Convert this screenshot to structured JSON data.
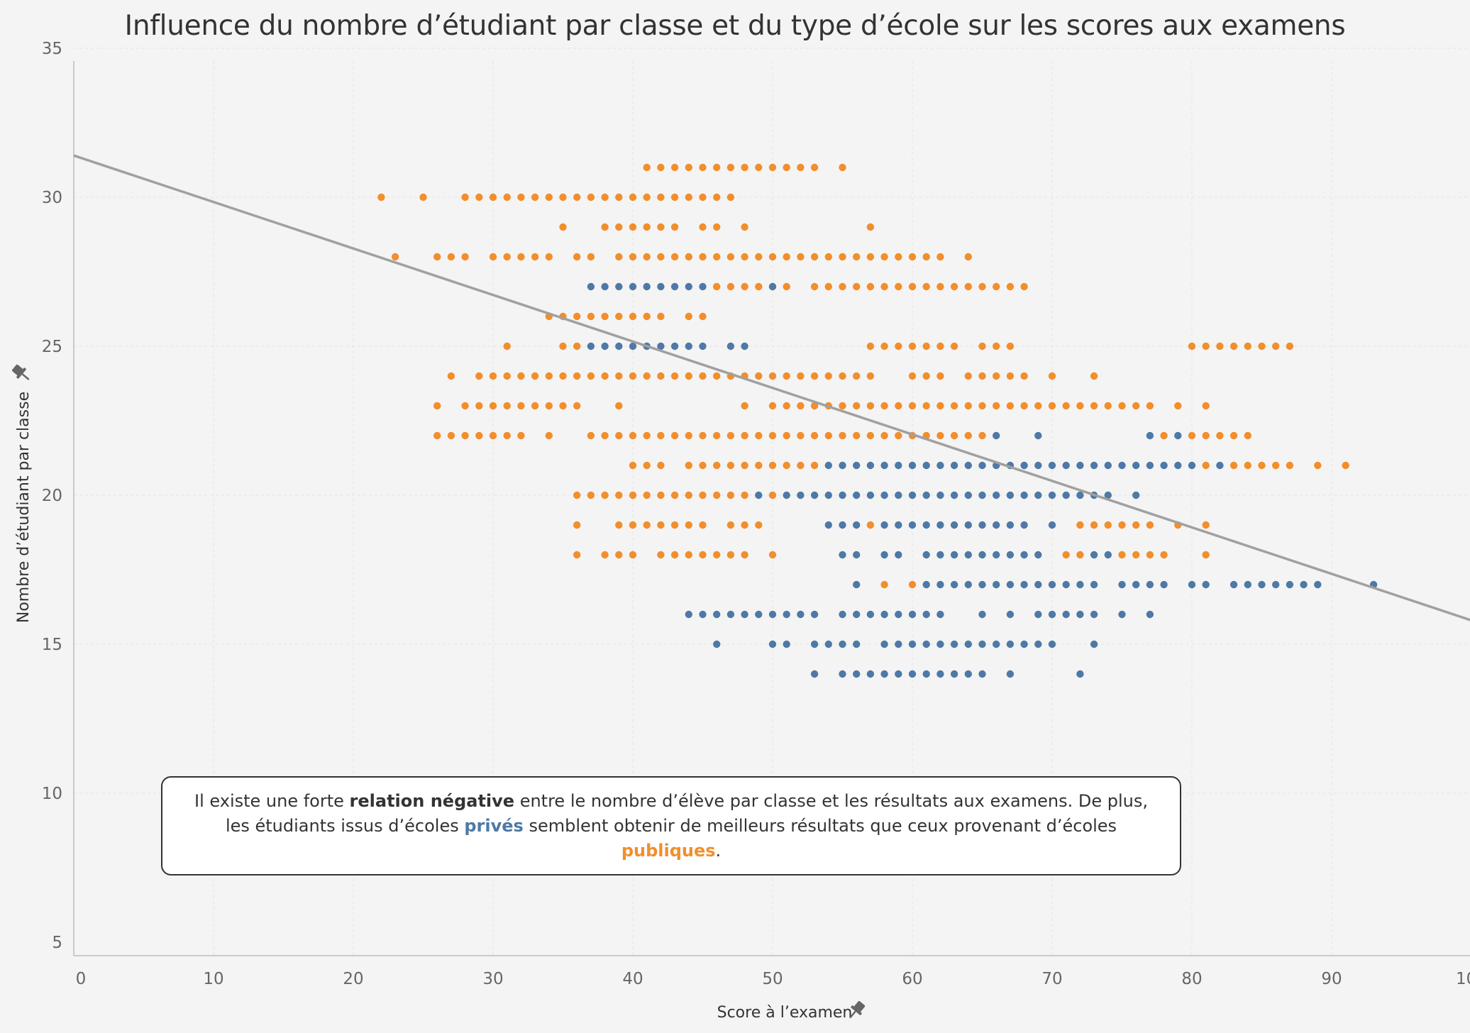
{
  "chart_data": {
    "type": "scatter",
    "title": "Influence du nombre d’étudiant par classe et du type d’école sur les scores aux examens",
    "xlabel": "Score à l’examen",
    "ylabel": "Nombre d’étudiant par classe",
    "xlim": [
      0,
      100
    ],
    "ylim": [
      5,
      35
    ],
    "x_ticks": [
      "0",
      "10",
      "20",
      "30",
      "40",
      "50",
      "60",
      "70",
      "80",
      "90",
      "100"
    ],
    "y_ticks": [
      "5",
      "10",
      "15",
      "20",
      "25",
      "30",
      "35"
    ],
    "grid": true,
    "legend": "none",
    "colors": {
      "prive": "#4e79a7",
      "publique": "#f28e2b",
      "trend": "#a0a0a0"
    },
    "trend_line": {
      "x": [
        0,
        100
      ],
      "y": [
        31.4,
        15.8
      ]
    },
    "series": [
      {
        "key": "publique",
        "color": "#f28e2b",
        "rows": [
          {
            "y": 31,
            "x": [
              41,
              42,
              43,
              44,
              45,
              46,
              47,
              48,
              49,
              50,
              51,
              52,
              53,
              55
            ]
          },
          {
            "y": 30,
            "x": [
              22,
              25,
              28,
              29,
              30,
              31,
              32,
              33,
              34,
              35,
              36,
              37,
              38,
              39,
              40,
              41,
              42,
              43,
              44,
              45,
              46,
              47
            ]
          },
          {
            "y": 29,
            "x": [
              35,
              38,
              39,
              40,
              41,
              42,
              43,
              45,
              46,
              48,
              57
            ]
          },
          {
            "y": 28,
            "x": [
              23,
              26,
              27,
              28,
              30,
              31,
              32,
              33,
              34,
              36,
              37,
              39,
              40,
              41,
              42,
              43,
              44,
              45,
              46,
              47,
              48,
              49,
              50,
              51,
              52,
              53,
              54,
              55,
              56,
              57,
              58,
              59,
              60,
              61,
              62,
              64
            ]
          },
          {
            "y": 27,
            "x": [
              46,
              47,
              48,
              49,
              50,
              51,
              53,
              54,
              55,
              56,
              57,
              58,
              59,
              60,
              61,
              62,
              63,
              64,
              65,
              66,
              67,
              68
            ]
          },
          {
            "y": 26,
            "x": [
              34,
              35,
              36,
              37,
              38,
              39,
              40,
              41,
              42,
              44,
              45
            ]
          },
          {
            "y": 25,
            "x": [
              31,
              35,
              36,
              57,
              58,
              59,
              60,
              61,
              62,
              63,
              65,
              66,
              67,
              80,
              81,
              82,
              83,
              84,
              85,
              86,
              87
            ]
          },
          {
            "y": 24,
            "x": [
              27,
              29,
              30,
              31,
              32,
              33,
              34,
              35,
              36,
              37,
              38,
              39,
              40,
              41,
              42,
              43,
              44,
              45,
              46,
              47,
              48,
              49,
              50,
              51,
              52,
              53,
              54,
              55,
              56,
              57,
              60,
              61,
              62,
              64,
              65,
              66,
              67,
              68,
              70,
              73
            ]
          },
          {
            "y": 23,
            "x": [
              26,
              28,
              29,
              30,
              31,
              32,
              33,
              34,
              35,
              36,
              39,
              48,
              50,
              51,
              52,
              53,
              54,
              55,
              56,
              57,
              58,
              59,
              60,
              61,
              62,
              63,
              64,
              65,
              66,
              67,
              68,
              69,
              70,
              71,
              72,
              73,
              74,
              75,
              76,
              77,
              79,
              81
            ]
          },
          {
            "y": 22,
            "x": [
              26,
              27,
              28,
              29,
              30,
              31,
              32,
              34,
              37,
              38,
              39,
              40,
              41,
              42,
              43,
              44,
              45,
              46,
              47,
              48,
              49,
              50,
              51,
              52,
              53,
              54,
              55,
              56,
              57,
              58,
              59,
              60,
              61,
              62,
              63,
              64,
              65,
              78,
              80,
              81,
              82,
              83,
              84
            ]
          },
          {
            "y": 21,
            "x": [
              40,
              41,
              42,
              44,
              45,
              46,
              47,
              48,
              49,
              50,
              51,
              52,
              53,
              81,
              83,
              84,
              85,
              86,
              87,
              89,
              91
            ]
          },
          {
            "y": 20,
            "x": [
              36,
              37,
              38,
              39,
              40,
              41,
              42,
              43,
              44,
              45,
              46,
              47,
              48,
              50
            ]
          },
          {
            "y": 19,
            "x": [
              36,
              39,
              40,
              41,
              42,
              43,
              44,
              45,
              47,
              48,
              49,
              57,
              72,
              73,
              74,
              75,
              76,
              77,
              79,
              81
            ]
          },
          {
            "y": 18,
            "x": [
              36,
              38,
              39,
              40,
              42,
              43,
              44,
              45,
              46,
              47,
              48,
              50,
              71,
              72,
              75,
              76,
              77,
              78,
              81
            ]
          },
          {
            "y": 17,
            "x": [
              58,
              60
            ]
          }
        ]
      },
      {
        "key": "prive",
        "color": "#4e79a7",
        "rows": [
          {
            "y": 27,
            "x": [
              37,
              38,
              39,
              40,
              41,
              42,
              43,
              44,
              45,
              50
            ]
          },
          {
            "y": 25,
            "x": [
              37,
              38,
              39,
              40,
              41,
              42,
              43,
              44,
              45,
              47,
              48
            ]
          },
          {
            "y": 22,
            "x": [
              66,
              69,
              77,
              79
            ]
          },
          {
            "y": 21,
            "x": [
              54,
              55,
              56,
              57,
              58,
              59,
              60,
              61,
              62,
              63,
              64,
              65,
              66,
              67,
              68,
              69,
              70,
              71,
              72,
              73,
              74,
              75,
              76,
              77,
              78,
              79,
              80,
              82
            ]
          },
          {
            "y": 20,
            "x": [
              49,
              51,
              52,
              53,
              54,
              55,
              56,
              57,
              58,
              59,
              60,
              61,
              62,
              63,
              64,
              65,
              66,
              67,
              68,
              69,
              70,
              71,
              72,
              73,
              74,
              76
            ]
          },
          {
            "y": 19,
            "x": [
              54,
              55,
              56,
              58,
              59,
              60,
              61,
              62,
              63,
              64,
              65,
              66,
              67,
              68,
              70
            ]
          },
          {
            "y": 18,
            "x": [
              55,
              56,
              58,
              59,
              61,
              62,
              63,
              64,
              65,
              66,
              67,
              68,
              69,
              73,
              74
            ]
          },
          {
            "y": 17,
            "x": [
              56,
              61,
              62,
              63,
              64,
              65,
              66,
              67,
              68,
              69,
              70,
              71,
              72,
              73,
              75,
              76,
              77,
              78,
              80,
              81,
              83,
              84,
              85,
              86,
              87,
              88,
              89,
              93
            ]
          },
          {
            "y": 16,
            "x": [
              44,
              45,
              46,
              47,
              48,
              49,
              50,
              51,
              52,
              53,
              55,
              56,
              57,
              58,
              59,
              60,
              61,
              62,
              65,
              67,
              69,
              70,
              71,
              72,
              73,
              75,
              77
            ]
          },
          {
            "y": 15,
            "x": [
              46,
              50,
              51,
              53,
              54,
              55,
              56,
              58,
              59,
              60,
              61,
              62,
              63,
              64,
              65,
              66,
              67,
              68,
              69,
              70,
              73
            ]
          },
          {
            "y": 14,
            "x": [
              53,
              55,
              56,
              57,
              58,
              59,
              60,
              61,
              62,
              63,
              64,
              65,
              67,
              72
            ]
          }
        ]
      }
    ]
  },
  "annotation": {
    "part1": "Il existe une forte ",
    "bold": "relation négative",
    "part2": " entre le nombre d’élève par classe et les résultats aux examens. De plus, les étudiants issus d’écoles ",
    "prive": "privés",
    "part3": " semblent obtenir de meilleurs résultats que ceux provenant d’écoles ",
    "publique": "publiques",
    "part4": "."
  },
  "icons": {
    "axis_pin": "pin-icon"
  }
}
